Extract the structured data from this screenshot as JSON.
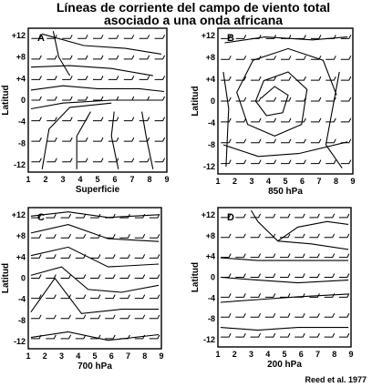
{
  "title": {
    "line1": "Líneas de corriente del campo de viento total",
    "line2": "asociado a una onda africana"
  },
  "credit": "Reed et al. 1977",
  "panels": [
    {
      "id": "A",
      "xlabel": "Superficie",
      "ylabel": "Latitud"
    },
    {
      "id": "B",
      "xlabel": "850 hPa",
      "ylabel": "Latitud"
    },
    {
      "id": "C",
      "xlabel": "700 hPa",
      "ylabel": "Latitud"
    },
    {
      "id": "D",
      "xlabel": "200 hPa",
      "ylabel": "Latitud"
    }
  ],
  "axes": {
    "x_ticks": [
      "1",
      "2",
      "3",
      "4",
      "5",
      "6",
      "7",
      "8",
      "9"
    ],
    "y_ticks": [
      "+12",
      "+8",
      "+4",
      "0",
      "-4",
      "-8",
      "-12"
    ]
  }
}
